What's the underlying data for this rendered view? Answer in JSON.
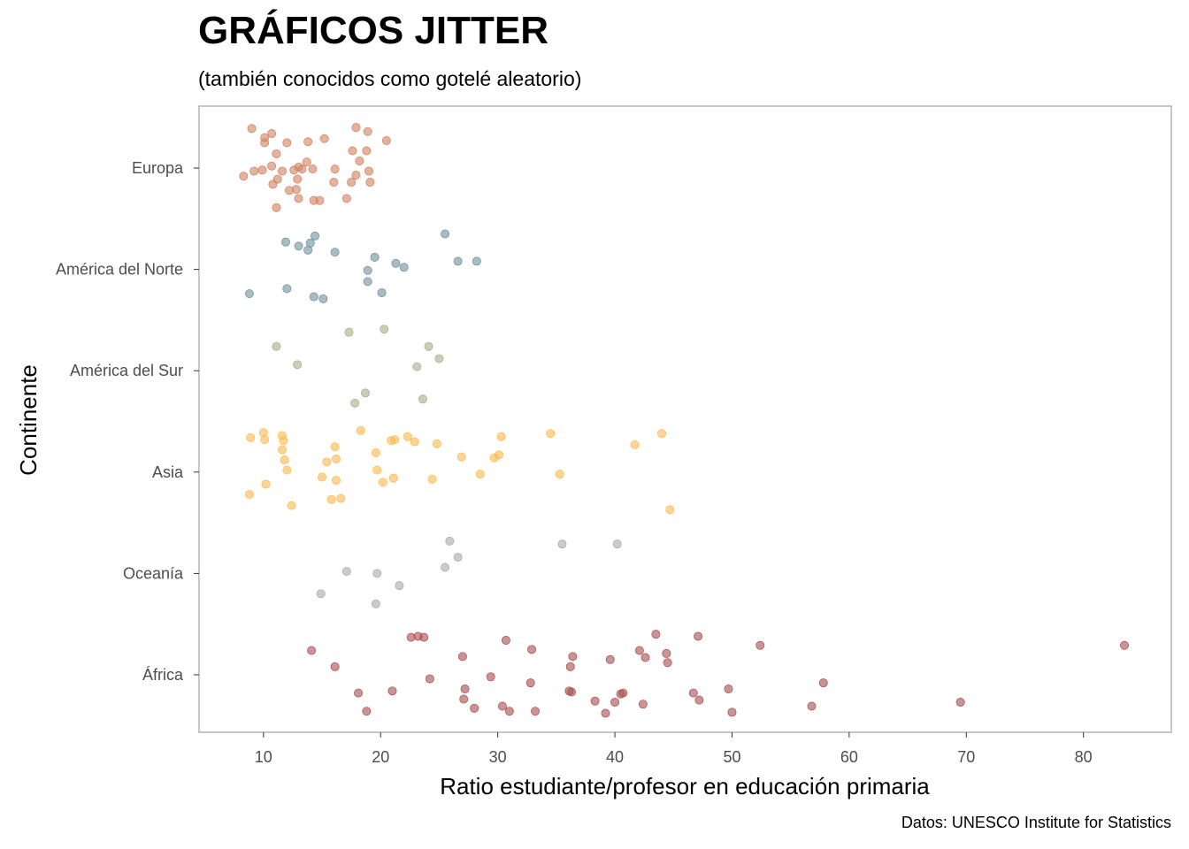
{
  "title": "GRÁFICOS JITTER",
  "subtitle": "(también conocidos como gotelé aleatorio)",
  "caption": "Datos: UNESCO Institute for Statistics",
  "chart_data": {
    "type": "scatter",
    "xlabel": "Ratio estudiante/profesor en educación primaria",
    "ylabel": "Continente",
    "xlim": [
      4.5,
      87.5
    ],
    "xticks": [
      10,
      20,
      30,
      40,
      50,
      60,
      70,
      80
    ],
    "xtick_labels": [
      "10",
      "20",
      "30",
      "40",
      "50",
      "60",
      "70",
      "80"
    ],
    "grid": false,
    "categories": [
      "Europa",
      "América del Norte",
      "América del Sur",
      "Asia",
      "Oceanía",
      "África"
    ],
    "series": [
      {
        "name": "Europa",
        "color": "#D2805E",
        "points": [
          [
            9.0,
            0.39
          ],
          [
            10.1,
            0.25
          ],
          [
            10.1,
            0.3
          ],
          [
            10.7,
            0.34
          ],
          [
            12.0,
            0.25
          ],
          [
            13.8,
            0.26
          ],
          [
            15.2,
            0.29
          ],
          [
            17.9,
            0.4
          ],
          [
            18.9,
            0.36
          ],
          [
            20.5,
            0.27
          ],
          [
            17.6,
            0.17
          ],
          [
            18.8,
            0.17
          ],
          [
            11.1,
            0.14
          ],
          [
            13.7,
            0.06
          ],
          [
            8.3,
            -0.08
          ],
          [
            9.2,
            -0.03
          ],
          [
            9.9,
            -0.02
          ],
          [
            10.7,
            0.02
          ],
          [
            11.6,
            -0.03
          ],
          [
            12.6,
            -0.02
          ],
          [
            13.0,
            0.01
          ],
          [
            13.3,
            -0.01
          ],
          [
            14.2,
            -0.01
          ],
          [
            16.1,
            -0.01
          ],
          [
            17.9,
            -0.07
          ],
          [
            18.2,
            0.07
          ],
          [
            19.0,
            -0.03
          ],
          [
            10.8,
            -0.16
          ],
          [
            11.2,
            -0.11
          ],
          [
            12.9,
            -0.11
          ],
          [
            12.2,
            -0.22
          ],
          [
            13.0,
            -0.3
          ],
          [
            14.3,
            -0.32
          ],
          [
            11.1,
            -0.39
          ],
          [
            16.0,
            -0.14
          ],
          [
            17.5,
            -0.14
          ],
          [
            19.1,
            -0.14
          ],
          [
            14.8,
            -0.32
          ],
          [
            17.1,
            -0.3
          ],
          [
            12.8,
            -0.21
          ]
        ]
      },
      {
        "name": "América del Norte",
        "color": "#6E8F9B",
        "points": [
          [
            25.5,
            0.35
          ],
          [
            11.9,
            0.27
          ],
          [
            13.0,
            0.23
          ],
          [
            13.8,
            0.19
          ],
          [
            14.0,
            0.26
          ],
          [
            14.4,
            0.33
          ],
          [
            16.1,
            0.17
          ],
          [
            19.5,
            0.12
          ],
          [
            21.3,
            0.06
          ],
          [
            22.0,
            0.02
          ],
          [
            26.6,
            0.08
          ],
          [
            28.2,
            0.08
          ],
          [
            18.9,
            -0.01
          ],
          [
            18.9,
            -0.12
          ],
          [
            8.8,
            -0.24
          ],
          [
            12.0,
            -0.19
          ],
          [
            14.3,
            -0.27
          ],
          [
            15.1,
            -0.29
          ],
          [
            20.1,
            -0.23
          ]
        ]
      },
      {
        "name": "América del Sur",
        "color": "#A1B187",
        "points": [
          [
            20.3,
            0.41
          ],
          [
            17.3,
            0.38
          ],
          [
            11.1,
            0.24
          ],
          [
            12.9,
            0.06
          ],
          [
            24.1,
            0.24
          ],
          [
            25.0,
            0.12
          ],
          [
            23.1,
            0.04
          ],
          [
            18.7,
            -0.22
          ],
          [
            17.8,
            -0.32
          ],
          [
            23.6,
            -0.28
          ]
        ]
      },
      {
        "name": "Asia",
        "color": "#FFB84D",
        "points": [
          [
            8.9,
            0.34
          ],
          [
            10.0,
            0.39
          ],
          [
            10.1,
            0.32
          ],
          [
            11.6,
            0.36
          ],
          [
            11.7,
            0.31
          ],
          [
            18.3,
            0.41
          ],
          [
            20.9,
            0.31
          ],
          [
            21.2,
            0.32
          ],
          [
            22.3,
            0.35
          ],
          [
            22.9,
            0.3
          ],
          [
            24.8,
            0.28
          ],
          [
            30.3,
            0.35
          ],
          [
            34.5,
            0.38
          ],
          [
            41.7,
            0.27
          ],
          [
            44.0,
            0.38
          ],
          [
            11.6,
            0.22
          ],
          [
            11.8,
            0.12
          ],
          [
            12.0,
            0.02
          ],
          [
            15.4,
            0.1
          ],
          [
            16.1,
            0.25
          ],
          [
            16.2,
            0.13
          ],
          [
            19.6,
            0.19
          ],
          [
            19.7,
            0.02
          ],
          [
            26.9,
            0.15
          ],
          [
            29.7,
            0.14
          ],
          [
            30.1,
            0.17
          ],
          [
            15.0,
            -0.05
          ],
          [
            16.2,
            -0.08
          ],
          [
            20.2,
            -0.1
          ],
          [
            21.1,
            -0.06
          ],
          [
            24.4,
            -0.07
          ],
          [
            28.5,
            -0.02
          ],
          [
            35.3,
            -0.02
          ],
          [
            10.2,
            -0.12
          ],
          [
            8.8,
            -0.22
          ],
          [
            12.4,
            -0.33
          ],
          [
            15.8,
            -0.27
          ],
          [
            16.6,
            -0.26
          ],
          [
            44.7,
            -0.37
          ]
        ]
      },
      {
        "name": "Oceanía",
        "color": "#A9A9A9",
        "points": [
          [
            25.9,
            0.32
          ],
          [
            35.5,
            0.29
          ],
          [
            40.2,
            0.29
          ],
          [
            26.6,
            0.16
          ],
          [
            25.5,
            0.06
          ],
          [
            17.1,
            0.02
          ],
          [
            19.7,
            0.0
          ],
          [
            21.6,
            -0.12
          ],
          [
            14.9,
            -0.2
          ],
          [
            19.6,
            -0.3
          ]
        ]
      },
      {
        "name": "África",
        "color": "#A84C4C",
        "points": [
          [
            43.5,
            0.4
          ],
          [
            47.1,
            0.38
          ],
          [
            22.6,
            0.37
          ],
          [
            23.2,
            0.38
          ],
          [
            23.7,
            0.37
          ],
          [
            30.7,
            0.34
          ],
          [
            52.4,
            0.29
          ],
          [
            83.5,
            0.29
          ],
          [
            14.1,
            0.24
          ],
          [
            32.9,
            0.25
          ],
          [
            42.1,
            0.24
          ],
          [
            27.0,
            0.18
          ],
          [
            36.4,
            0.18
          ],
          [
            39.6,
            0.15
          ],
          [
            42.6,
            0.17
          ],
          [
            44.4,
            0.21
          ],
          [
            44.5,
            0.12
          ],
          [
            16.1,
            0.08
          ],
          [
            36.2,
            0.08
          ],
          [
            24.2,
            -0.04
          ],
          [
            29.4,
            -0.02
          ],
          [
            32.8,
            -0.08
          ],
          [
            57.8,
            -0.08
          ],
          [
            27.2,
            -0.14
          ],
          [
            36.1,
            -0.16
          ],
          [
            36.3,
            -0.17
          ],
          [
            40.5,
            -0.19
          ],
          [
            40.7,
            -0.18
          ],
          [
            46.7,
            -0.18
          ],
          [
            49.7,
            -0.14
          ],
          [
            18.1,
            -0.18
          ],
          [
            21.0,
            -0.16
          ],
          [
            27.1,
            -0.24
          ],
          [
            31.0,
            -0.36
          ],
          [
            38.3,
            -0.26
          ],
          [
            40.0,
            -0.27
          ],
          [
            42.4,
            -0.29
          ],
          [
            47.2,
            -0.25
          ],
          [
            56.8,
            -0.31
          ],
          [
            69.5,
            -0.27
          ],
          [
            18.8,
            -0.36
          ],
          [
            28.0,
            -0.33
          ],
          [
            30.4,
            -0.31
          ],
          [
            33.2,
            -0.36
          ],
          [
            39.2,
            -0.38
          ],
          [
            50.0,
            -0.37
          ]
        ]
      }
    ]
  }
}
